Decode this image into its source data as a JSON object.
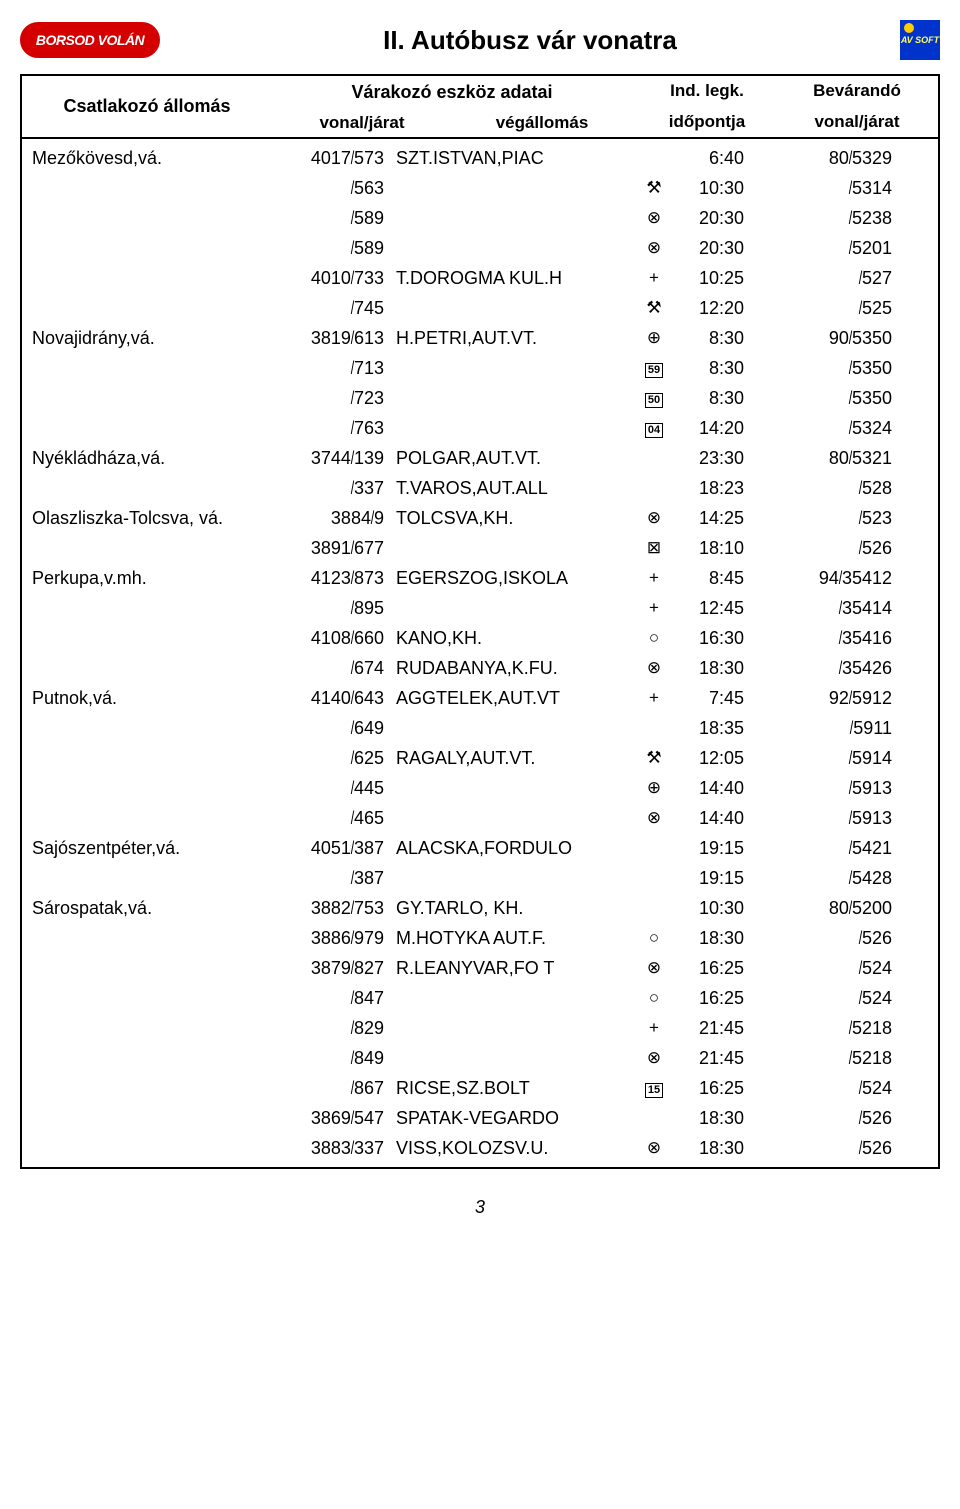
{
  "logo_text": "BORSOD VOLÁN",
  "avsoft_text": "AV SOFT",
  "title": "II. Autóbusz vár vonatra",
  "page_number": "3",
  "header": {
    "col1": "Csatlakozó állomás",
    "col2_top": "Várakozó eszköz adatai",
    "col2_a": "vonal/járat",
    "col2_b": "végállomás",
    "col3_top": "Ind. legk.",
    "col3_bot": "időpontja",
    "col4_top": "Bevárandó",
    "col4_bot": "vonal/járat"
  },
  "symbols": {
    "hammer": "⚒",
    "x_circle": "⊗",
    "plus": "+",
    "plus_circle": "⊕",
    "circle": "○",
    "x_box": "⊠"
  },
  "rows": [
    {
      "station": "Mezőkövesd,vá.",
      "line_a": "4017",
      "line_b": "573",
      "dest": "SZT.ISTVAN,PIAC",
      "sym": "",
      "time": "6:40",
      "wait_a": "80",
      "wait_b": "5329"
    },
    {
      "station": "",
      "line_a": "",
      "line_b": "563",
      "dest": "",
      "sym": "hammer",
      "time": "10:30",
      "wait_a": "",
      "wait_b": "5314"
    },
    {
      "station": "",
      "line_a": "",
      "line_b": "589",
      "dest": "",
      "sym": "x_circle",
      "time": "20:30",
      "wait_a": "",
      "wait_b": "5238"
    },
    {
      "station": "",
      "line_a": "",
      "line_b": "589",
      "dest": "",
      "sym": "x_circle",
      "time": "20:30",
      "wait_a": "",
      "wait_b": "5201"
    },
    {
      "station": "",
      "line_a": "4010",
      "line_b": "733",
      "dest": "T.DOROGMA KUL.H",
      "sym": "plus",
      "time": "10:25",
      "wait_a": "",
      "wait_b": "527"
    },
    {
      "station": "",
      "line_a": "",
      "line_b": "745",
      "dest": "",
      "sym": "hammer",
      "time": "12:20",
      "wait_a": "",
      "wait_b": "525"
    },
    {
      "station": "Novajidrány,vá.",
      "line_a": "3819",
      "line_b": "613",
      "dest": "H.PETRI,AUT.VT.",
      "sym": "plus_circle",
      "time": "8:30",
      "wait_a": "90",
      "wait_b": "5350"
    },
    {
      "station": "",
      "line_a": "",
      "line_b": "713",
      "dest": "",
      "sym": "box:59",
      "time": "8:30",
      "wait_a": "",
      "wait_b": "5350"
    },
    {
      "station": "",
      "line_a": "",
      "line_b": "723",
      "dest": "",
      "sym": "box:50",
      "time": "8:30",
      "wait_a": "",
      "wait_b": "5350"
    },
    {
      "station": "",
      "line_a": "",
      "line_b": "763",
      "dest": "",
      "sym": "box:04",
      "time": "14:20",
      "wait_a": "",
      "wait_b": "5324"
    },
    {
      "station": "Nyékládháza,vá.",
      "line_a": "3744",
      "line_b": "139",
      "dest": "POLGAR,AUT.VT.",
      "sym": "",
      "time": "23:30",
      "wait_a": "80",
      "wait_b": "5321"
    },
    {
      "station": "",
      "line_a": "",
      "line_b": "337",
      "dest": "T.VAROS,AUT.ALL",
      "sym": "",
      "time": "18:23",
      "wait_a": "",
      "wait_b": "528"
    },
    {
      "station": "Olaszliszka-Tolcsva, vá.",
      "line_a": "3884",
      "line_b": "9",
      "dest": "TOLCSVA,KH.",
      "sym": "x_circle",
      "time": "14:25",
      "wait_a": "",
      "wait_b": "523"
    },
    {
      "station": "",
      "line_a": "3891",
      "line_b": "677",
      "dest": "",
      "sym": "x_box",
      "time": "18:10",
      "wait_a": "",
      "wait_b": "526"
    },
    {
      "station": "Perkupa,v.mh.",
      "line_a": "4123",
      "line_b": "873",
      "dest": "EGERSZOG,ISKOLA",
      "sym": "plus",
      "time": "8:45",
      "wait_a": "94",
      "wait_b": "35412"
    },
    {
      "station": "",
      "line_a": "",
      "line_b": "895",
      "dest": "",
      "sym": "plus",
      "time": "12:45",
      "wait_a": "",
      "wait_b": "35414"
    },
    {
      "station": "",
      "line_a": "4108",
      "line_b": "660",
      "dest": "KANO,KH.",
      "sym": "circle",
      "time": "16:30",
      "wait_a": "",
      "wait_b": "35416"
    },
    {
      "station": "",
      "line_a": "",
      "line_b": "674",
      "dest": "RUDABANYA,K.FU.",
      "sym": "x_circle",
      "time": "18:30",
      "wait_a": "",
      "wait_b": "35426"
    },
    {
      "station": "Putnok,vá.",
      "line_a": "4140",
      "line_b": "643",
      "dest": "AGGTELEK,AUT.VT",
      "sym": "plus",
      "time": "7:45",
      "wait_a": "92",
      "wait_b": "5912"
    },
    {
      "station": "",
      "line_a": "",
      "line_b": "649",
      "dest": "",
      "sym": "",
      "time": "18:35",
      "wait_a": "",
      "wait_b": "5911"
    },
    {
      "station": "",
      "line_a": "",
      "line_b": "625",
      "dest": "RAGALY,AUT.VT.",
      "sym": "hammer",
      "time": "12:05",
      "wait_a": "",
      "wait_b": "5914"
    },
    {
      "station": "",
      "line_a": "",
      "line_b": "445",
      "dest": "",
      "sym": "plus_circle",
      "time": "14:40",
      "wait_a": "",
      "wait_b": "5913"
    },
    {
      "station": "",
      "line_a": "",
      "line_b": "465",
      "dest": "",
      "sym": "x_circle",
      "time": "14:40",
      "wait_a": "",
      "wait_b": "5913"
    },
    {
      "station": "Sajószentpéter,vá.",
      "line_a": "4051",
      "line_b": "387",
      "dest": "ALACSKA,FORDULO",
      "sym": "",
      "time": "19:15",
      "wait_a": "",
      "wait_b": "5421"
    },
    {
      "station": "",
      "line_a": "",
      "line_b": "387",
      "dest": "",
      "sym": "",
      "time": "19:15",
      "wait_a": "",
      "wait_b": "5428"
    },
    {
      "station": "Sárospatak,vá.",
      "line_a": "3882",
      "line_b": "753",
      "dest": "GY.TARLO, KH.",
      "sym": "",
      "time": "10:30",
      "wait_a": "80",
      "wait_b": "5200"
    },
    {
      "station": "",
      "line_a": "3886",
      "line_b": "979",
      "dest": "M.HOTYKA AUT.F.",
      "sym": "circle",
      "time": "18:30",
      "wait_a": "",
      "wait_b": "526"
    },
    {
      "station": "",
      "line_a": "3879",
      "line_b": "827",
      "dest": "R.LEANYVAR,FO T",
      "sym": "x_circle",
      "time": "16:25",
      "wait_a": "",
      "wait_b": "524"
    },
    {
      "station": "",
      "line_a": "",
      "line_b": "847",
      "dest": "",
      "sym": "circle",
      "time": "16:25",
      "wait_a": "",
      "wait_b": "524"
    },
    {
      "station": "",
      "line_a": "",
      "line_b": "829",
      "dest": "",
      "sym": "plus",
      "time": "21:45",
      "wait_a": "",
      "wait_b": "5218"
    },
    {
      "station": "",
      "line_a": "",
      "line_b": "849",
      "dest": "",
      "sym": "x_circle",
      "time": "21:45",
      "wait_a": "",
      "wait_b": "5218"
    },
    {
      "station": "",
      "line_a": "",
      "line_b": "867",
      "dest": "RICSE,SZ.BOLT",
      "sym": "box:15",
      "time": "16:25",
      "wait_a": "",
      "wait_b": "524"
    },
    {
      "station": "",
      "line_a": "3869",
      "line_b": "547",
      "dest": "SPATAK-VEGARDO",
      "sym": "",
      "time": "18:30",
      "wait_a": "",
      "wait_b": "526"
    },
    {
      "station": "",
      "line_a": "3883",
      "line_b": "337",
      "dest": "VISS,KOLOZSV.U.",
      "sym": "x_circle",
      "time": "18:30",
      "wait_a": "",
      "wait_b": "526"
    }
  ]
}
